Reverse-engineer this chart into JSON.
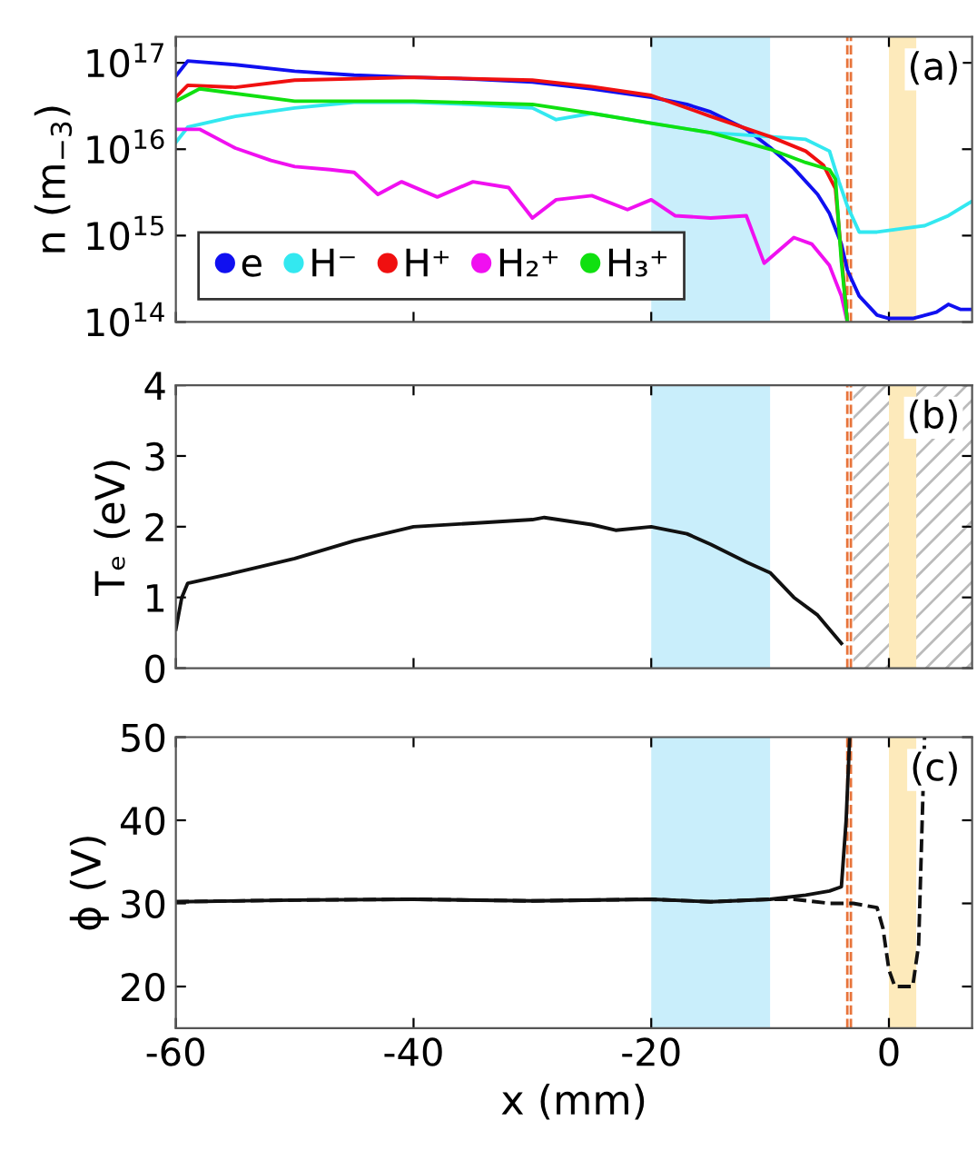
{
  "chart_data": [
    {
      "type": "line",
      "ylabel": "n (m$_{−3}$)",
      "log": "y",
      "xlim": [
        -60,
        7
      ],
      "xticks": [
        -60,
        -40,
        -20,
        0
      ],
      "ylim": [
        100000000000000.0,
        2e+17
      ],
      "yticks": [
        {
          "value": 100000000000000.0,
          "label": "10$^{14}$"
        },
        {
          "value": 1000000000000000.0,
          "label": "10$^{15}$"
        },
        {
          "value": 1e+16,
          "label": "10$^{16}$"
        },
        {
          "value": 1e+17,
          "label": "10$^{17}$"
        }
      ],
      "tick_labels": "y",
      "legend": "bottom left",
      "grid": false,
      "series": [
        {
          "name": "e",
          "color": "#1010f0",
          "x": [
            -60,
            -59,
            -55,
            -50,
            -45,
            -40,
            -35,
            -30,
            -25,
            -20,
            -17,
            -15,
            -12,
            -10,
            -8,
            -6,
            -5,
            -4,
            -3.5,
            -2.5,
            -1,
            0,
            2,
            4,
            5,
            6,
            7
          ],
          "values": [
            7e+16,
            1.05e+17,
            9.5e+16,
            8e+16,
            7.2e+16,
            6.8e+16,
            6.5e+16,
            6e+16,
            5e+16,
            4e+16,
            3.3e+16,
            2.7e+16,
            1.7e+16,
            1.05e+16,
            6000000000000000.0,
            3000000000000000.0,
            1800000000000000.0,
            800000000000000.0,
            400000000000000.0,
            200000000000000.0,
            120000000000000.0,
            110000000000000.0,
            110000000000000.0,
            130000000000000.0,
            160000000000000.0,
            140000000000000.0,
            140000000000000.0
          ]
        },
        {
          "name": "H⁻",
          "color": "#33e8f0",
          "x": [
            -60,
            -59,
            -55,
            -50,
            -45,
            -40,
            -35,
            -30,
            -28,
            -25,
            -20,
            -15,
            -10,
            -7,
            -5,
            -4.2,
            -3.5,
            -2.5,
            -1,
            1,
            3,
            5,
            7
          ],
          "values": [
            1.2e+16,
            1.8e+16,
            2.4e+16,
            3e+16,
            3.5e+16,
            3.5e+16,
            3.3e+16,
            3e+16,
            2.2e+16,
            2.6e+16,
            2e+16,
            1.55e+16,
            1.4e+16,
            1.3e+16,
            9500000000000000.0,
            4200000000000000.0,
            2200000000000000.0,
            1100000000000000.0,
            1100000000000000.0,
            1200000000000000.0,
            1300000000000000.0,
            1700000000000000.0,
            2500000000000000.0
          ]
        },
        {
          "name": "H⁺",
          "color": "#f01010",
          "x": [
            -60,
            -59,
            -55,
            -50,
            -40,
            -30,
            -25,
            -20,
            -15,
            -10,
            -7,
            -5.5,
            -4.5,
            -4,
            -3.5
          ],
          "values": [
            4e+16,
            5.5e+16,
            5.2e+16,
            6.3e+16,
            6.8e+16,
            6.3e+16,
            5.3e+16,
            4.2e+16,
            2.4e+16,
            1.4e+16,
            9500000000000000.0,
            6500000000000000.0,
            3500000000000000.0,
            600000000000000.0,
            100000000000000.0
          ]
        },
        {
          "name": "H₂⁺",
          "color": "#f010f0",
          "x": [
            -60,
            -58,
            -55,
            -52,
            -50,
            -47,
            -45,
            -43,
            -41,
            -38,
            -35,
            -32,
            -30,
            -28,
            -25,
            -22,
            -20,
            -18,
            -15,
            -12,
            -10.5,
            -8,
            -6.5,
            -5,
            -4,
            -3.5
          ],
          "values": [
            1.7e+16,
            1.7e+16,
            1.03e+16,
            7400000000000000.0,
            6300000000000000.0,
            5800000000000000.0,
            5400000000000000.0,
            3000000000000000.0,
            4200000000000000.0,
            2800000000000000.0,
            4200000000000000.0,
            3600000000000000.0,
            1600000000000000.0,
            2600000000000000.0,
            2900000000000000.0,
            2000000000000000.0,
            2600000000000000.0,
            1700000000000000.0,
            1600000000000000.0,
            1700000000000000.0,
            480000000000000.0,
            950000000000000.0,
            800000000000000.0,
            450000000000000.0,
            200000000000000.0,
            100000000000000.0
          ]
        },
        {
          "name": "H₃⁺",
          "color": "#10e010",
          "x": [
            -60,
            -58,
            -50,
            -40,
            -30,
            -25,
            -20,
            -15,
            -10,
            -7,
            -5,
            -4.5,
            -4,
            -3.5
          ],
          "values": [
            3.6e+16,
            5e+16,
            3.6e+16,
            3.6e+16,
            3.3e+16,
            2.6e+16,
            2e+16,
            1.55e+16,
            1e+16,
            7000000000000000.0,
            5800000000000000.0,
            4500000000000000.0,
            500000000000000.0,
            100000000000000.0
          ]
        }
      ],
      "bands": [
        {
          "axis": "x",
          "from": -20,
          "to": -10,
          "color": "#c9eefb"
        },
        {
          "axis": "x",
          "from": 0,
          "to": 2.3,
          "color": "#fdeabb"
        }
      ],
      "ref_lines": [
        {
          "axis": "x",
          "value": -3.5,
          "color": "#e8743b",
          "line_style": "dashed"
        },
        {
          "axis": "x",
          "value": -3.2,
          "color": "#e8743b",
          "line_style": "dashed"
        }
      ],
      "annotations": [
        "(a)"
      ]
    },
    {
      "type": "line",
      "ylabel": "Tₑ (eV)",
      "xlim": [
        -60,
        7
      ],
      "xticks": [
        -60,
        -40,
        -20,
        0
      ],
      "ylim": [
        0,
        4
      ],
      "yticks": [
        0,
        1,
        2,
        3,
        4
      ],
      "tick_labels": "y",
      "grid": false,
      "series": [
        {
          "color": "#111111",
          "x": [
            -60,
            -59.5,
            -59,
            -55,
            -50,
            -45,
            -40,
            -35,
            -30,
            -29,
            -25,
            -23,
            -20,
            -17,
            -15,
            -12,
            -10,
            -8,
            -6,
            -4.5,
            -4
          ],
          "values": [
            0.55,
            1.0,
            1.2,
            1.35,
            1.55,
            1.8,
            2.0,
            2.05,
            2.1,
            2.13,
            2.03,
            1.95,
            2.0,
            1.9,
            1.75,
            1.5,
            1.35,
            1.0,
            0.75,
            0.45,
            0.35
          ]
        }
      ],
      "bands": [
        {
          "axis": "x",
          "from": -3,
          "to": 7,
          "color": "#bbbbbb"
        },
        {
          "axis": "x",
          "from": -20,
          "to": -10,
          "color": "#c9eefb"
        },
        {
          "axis": "x",
          "from": 0,
          "to": 2.3,
          "color": "#fdeabb"
        }
      ],
      "ref_lines": [
        {
          "axis": "x",
          "value": -3.5,
          "color": "#e8743b",
          "line_style": "dashed"
        },
        {
          "axis": "x",
          "value": -3.2,
          "color": "#e8743b",
          "line_style": "dashed"
        }
      ],
      "annotations": [
        "(b)"
      ]
    },
    {
      "type": "line",
      "xlabel": "x (mm)",
      "ylabel": "ϕ (V)",
      "xlim": [
        -60,
        7
      ],
      "xticks": [
        -60,
        -40,
        -20,
        0
      ],
      "ylim": [
        15,
        50
      ],
      "yticks": [
        20,
        30,
        40,
        50
      ],
      "grid": false,
      "series": [
        {
          "color": "#111111",
          "line_style": "solid",
          "x": [
            -60,
            -50,
            -40,
            -30,
            -20,
            -15,
            -10,
            -7,
            -5,
            -4,
            -3.6,
            -3.3
          ],
          "values": [
            30.2,
            30.4,
            30.5,
            30.3,
            30.5,
            30.2,
            30.5,
            31,
            31.5,
            32,
            40,
            50
          ]
        },
        {
          "color": "#111111",
          "line_style": "dashed",
          "x": [
            -60,
            -50,
            -40,
            -30,
            -20,
            -15,
            -10,
            -8,
            -5,
            -3,
            -1,
            -0.5,
            0,
            0.5,
            2,
            2.5,
            2.8,
            3
          ],
          "values": [
            30.2,
            30.4,
            30.5,
            30.3,
            30.5,
            30.2,
            30.5,
            30.5,
            30,
            30,
            29.5,
            27,
            22,
            20,
            20,
            25,
            40,
            50
          ]
        }
      ],
      "bands": [
        {
          "axis": "x",
          "from": -20,
          "to": -10,
          "color": "#c9eefb"
        },
        {
          "axis": "x",
          "from": 0,
          "to": 2.3,
          "color": "#fdeabb"
        }
      ],
      "ref_lines": [
        {
          "axis": "x",
          "value": -3.5,
          "color": "#e8743b",
          "line_style": "dashed"
        },
        {
          "axis": "x",
          "value": -3.2,
          "color": "#e8743b",
          "line_style": "dashed"
        }
      ],
      "annotations": [
        "(c)"
      ]
    }
  ]
}
